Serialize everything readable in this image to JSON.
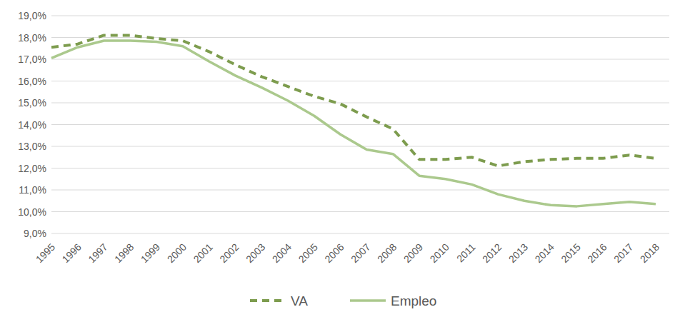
{
  "chart_data": {
    "type": "line",
    "categories": [
      "1995",
      "1996",
      "1997",
      "1998",
      "1999",
      "2000",
      "2001",
      "2002",
      "2003",
      "2004",
      "2005",
      "2006",
      "2007",
      "2008",
      "2009",
      "2010",
      "2011",
      "2012",
      "2013",
      "2014",
      "2015",
      "2016",
      "2017",
      "2018"
    ],
    "series": [
      {
        "name": "VA",
        "color": "#7d9c4e",
        "line_style": "dashed",
        "values": [
          17.55,
          17.7,
          18.1,
          18.1,
          17.95,
          17.85,
          17.35,
          16.75,
          16.2,
          15.75,
          15.3,
          14.95,
          14.35,
          13.8,
          12.4,
          12.4,
          12.5,
          12.1,
          12.3,
          12.4,
          12.45,
          12.45,
          12.6,
          12.45
        ]
      },
      {
        "name": "Empleo",
        "color": "#abc98d",
        "line_style": "solid",
        "values": [
          17.05,
          17.55,
          17.85,
          17.85,
          17.8,
          17.6,
          16.9,
          16.25,
          15.7,
          15.1,
          14.4,
          13.55,
          12.85,
          12.65,
          11.65,
          11.5,
          11.25,
          10.8,
          10.5,
          10.3,
          10.25,
          10.35,
          10.45,
          10.35
        ]
      }
    ],
    "ylim": [
      9,
      19
    ],
    "yticks": [
      {
        "value": 9,
        "label": "9,0%"
      },
      {
        "value": 10,
        "label": "10,0%"
      },
      {
        "value": 11,
        "label": "11,0%"
      },
      {
        "value": 12,
        "label": "12,0%"
      },
      {
        "value": 13,
        "label": "13,0%"
      },
      {
        "value": 14,
        "label": "14,0%"
      },
      {
        "value": 15,
        "label": "15,0%"
      },
      {
        "value": 16,
        "label": "16,0%"
      },
      {
        "value": 17,
        "label": "17,0%"
      },
      {
        "value": 18,
        "label": "18,0%"
      },
      {
        "value": 19,
        "label": "19,0%"
      }
    ],
    "grid": true,
    "legend": "bottom"
  }
}
